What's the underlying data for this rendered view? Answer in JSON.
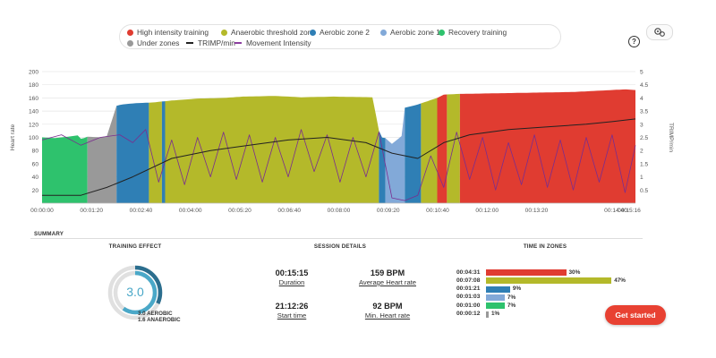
{
  "legend": {
    "items": [
      {
        "label": "High intensity training",
        "color": "#e03c31",
        "kind": "dot"
      },
      {
        "label": "Anaerobic threshold zone",
        "color": "#b4b92a",
        "kind": "dot"
      },
      {
        "label": "Aerobic zone 2",
        "color": "#2f7fb5",
        "kind": "dot"
      },
      {
        "label": "Aerobic zone 1",
        "color": "#82a9d8",
        "kind": "dot"
      },
      {
        "label": "Recovery training",
        "color": "#2ec26d",
        "kind": "dot"
      },
      {
        "label": "Under zones",
        "color": "#999999",
        "kind": "dot"
      },
      {
        "label": "TRIMP/min",
        "color": "#222222",
        "kind": "line"
      },
      {
        "label": "Movement Intensity",
        "color": "#8c3fa0",
        "kind": "line"
      }
    ]
  },
  "toolbar": {
    "help_glyph": "?",
    "help_icon": "help-icon",
    "settings_icon": "gears-icon"
  },
  "chart_data": {
    "type": "area",
    "xlabel": "",
    "ylabel": "Heart rate",
    "y2label": "TRIMP/min",
    "x_ticks": [
      "00:00:00",
      "00:01:20",
      "00:02:40",
      "00:04:00",
      "00:05:20",
      "00:06:40",
      "00:08:00",
      "00:09:20",
      "00:10:40",
      "00:12:00",
      "00:13:20",
      "00:14:40",
      "00:15:16"
    ],
    "y_ticks": [
      20,
      40,
      60,
      80,
      100,
      120,
      140,
      160,
      180,
      200
    ],
    "y2_ticks": [
      0.5,
      1,
      1.5,
      2,
      2.5,
      3,
      3.5,
      4,
      4.5,
      5
    ],
    "ylim": [
      0,
      200
    ],
    "y2lim": [
      0,
      5
    ],
    "xlim_seconds": [
      0,
      916
    ],
    "grid": true,
    "heart_rate": {
      "time_s": [
        0,
        20,
        40,
        55,
        60,
        65,
        70,
        90,
        100,
        115,
        122,
        145,
        170,
        200,
        240,
        280,
        310,
        360,
        400,
        450,
        510,
        522,
        530,
        540,
        555,
        560,
        580,
        610,
        620,
        640,
        700,
        760,
        820,
        860,
        900,
        916
      ],
      "bpm": [
        100,
        99,
        101,
        103,
        98,
        99,
        101,
        100,
        102,
        148,
        150,
        152,
        153,
        156,
        159,
        160,
        162,
        163,
        161,
        162,
        161,
        100,
        99,
        90,
        102,
        145,
        150,
        160,
        165,
        166,
        167,
        168,
        169,
        171,
        173,
        172
      ]
    },
    "zones": [
      {
        "from_s": 0,
        "to_s": 70,
        "zone": "Recovery training"
      },
      {
        "from_s": 70,
        "to_s": 115,
        "zone": "Under zones"
      },
      {
        "from_s": 115,
        "to_s": 165,
        "zone": "Aerobic zone 2"
      },
      {
        "from_s": 165,
        "to_s": 185,
        "zone": "Anaerobic threshold zone"
      },
      {
        "from_s": 185,
        "to_s": 190,
        "zone": "Aerobic zone 2"
      },
      {
        "from_s": 190,
        "to_s": 520,
        "zone": "Anaerobic threshold zone"
      },
      {
        "from_s": 520,
        "to_s": 530,
        "zone": "Aerobic zone 2"
      },
      {
        "from_s": 530,
        "to_s": 560,
        "zone": "Aerobic zone 1"
      },
      {
        "from_s": 560,
        "to_s": 585,
        "zone": "Aerobic zone 2"
      },
      {
        "from_s": 585,
        "to_s": 610,
        "zone": "Anaerobic threshold zone"
      },
      {
        "from_s": 610,
        "to_s": 625,
        "zone": "High intensity training"
      },
      {
        "from_s": 625,
        "to_s": 645,
        "zone": "Anaerobic threshold zone"
      },
      {
        "from_s": 645,
        "to_s": 916,
        "zone": "High intensity training"
      }
    ],
    "trimp": {
      "time_s": [
        0,
        60,
        100,
        140,
        200,
        260,
        320,
        380,
        440,
        500,
        540,
        580,
        620,
        660,
        720,
        780,
        840,
        880,
        916
      ],
      "value": [
        0.3,
        0.3,
        0.6,
        1.0,
        1.7,
        2.0,
        2.2,
        2.4,
        2.5,
        2.3,
        1.9,
        1.7,
        2.3,
        2.6,
        2.8,
        2.9,
        3.0,
        3.1,
        3.2
      ]
    },
    "movement_intensity": {
      "time_s": [
        0,
        30,
        60,
        90,
        120,
        140,
        160,
        180,
        200,
        220,
        240,
        260,
        280,
        300,
        320,
        340,
        360,
        380,
        400,
        420,
        440,
        460,
        480,
        500,
        520,
        540,
        560,
        580,
        600,
        620,
        640,
        660,
        680,
        700,
        720,
        740,
        760,
        780,
        800,
        820,
        840,
        860,
        880,
        900,
        916
      ],
      "value": [
        2.4,
        2.6,
        2.2,
        2.5,
        2.6,
        2.3,
        2.8,
        0.8,
        2.4,
        0.7,
        2.5,
        1.0,
        2.7,
        0.9,
        2.6,
        0.8,
        2.5,
        1.0,
        2.8,
        1.2,
        2.6,
        0.8,
        2.5,
        1.0,
        2.7,
        0.2,
        0.1,
        0.3,
        1.8,
        0.6,
        2.7,
        0.9,
        2.5,
        0.5,
        2.3,
        0.7,
        2.6,
        0.6,
        2.4,
        0.5,
        2.5,
        0.8,
        2.6,
        0.4,
        2.2
      ]
    }
  },
  "summary": {
    "title": "SUMMARY",
    "training_effect": {
      "header": "TRAINING EFFECT",
      "value": "3.0",
      "aerobic_fraction": 0.6,
      "anaerobic_fraction": 0.32,
      "aerobic_label": "3.0 AEROBIC",
      "anaerobic_label": "1.6 ANAEROBIC"
    },
    "session_details": {
      "header": "SESSION DETAILS",
      "duration_value": "00:15:15",
      "duration_label": "Duration",
      "avg_hr_value": "159 BPM",
      "avg_hr_label": "Average Heart rate",
      "start_value": "21:12:26",
      "start_label": "Start time",
      "min_hr_value": "92 BPM",
      "min_hr_label": "Min. Heart rate"
    },
    "time_in_zones": {
      "header": "TIME IN ZONES",
      "rows": [
        {
          "time": "00:04:31",
          "percent": "30%",
          "fraction": 0.3,
          "color": "#e03c31"
        },
        {
          "time": "00:07:08",
          "percent": "47%",
          "fraction": 0.47,
          "color": "#b4b92a"
        },
        {
          "time": "00:01:21",
          "percent": "9%",
          "fraction": 0.09,
          "color": "#2f7fb5"
        },
        {
          "time": "00:01:03",
          "percent": "7%",
          "fraction": 0.07,
          "color": "#82a9d8"
        },
        {
          "time": "00:01:00",
          "percent": "7%",
          "fraction": 0.07,
          "color": "#2ec26d"
        },
        {
          "time": "00:00:12",
          "percent": "1%",
          "fraction": 0.01,
          "color": "#999999"
        }
      ]
    }
  },
  "cta": {
    "label": "Get started"
  }
}
